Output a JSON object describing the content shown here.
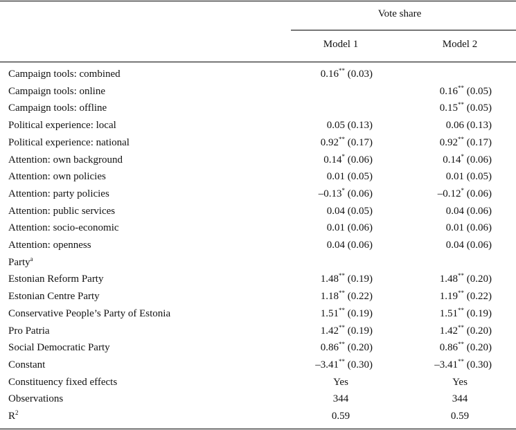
{
  "header": {
    "title": "Vote share",
    "columns": [
      "Model 1",
      "Model 2"
    ]
  },
  "table": {
    "rows": [
      {
        "label": "Campaign tools: combined",
        "cells": [
          {
            "value": "0.16",
            "stars": "**",
            "se": "(0.03)"
          },
          null
        ]
      },
      {
        "label": "Campaign tools: online",
        "cells": [
          null,
          {
            "value": "0.16",
            "stars": "**",
            "se": "(0.05)"
          }
        ]
      },
      {
        "label": "Campaign tools: offline",
        "cells": [
          null,
          {
            "value": "0.15",
            "stars": "**",
            "se": "(0.05)"
          }
        ]
      },
      {
        "label": "Political experience: local",
        "cells": [
          {
            "value": "0.05",
            "se": "(0.13)"
          },
          {
            "value": "0.06",
            "se": "(0.13)"
          }
        ]
      },
      {
        "label": "Political experience: national",
        "cells": [
          {
            "value": "0.92",
            "stars": "**",
            "se": "(0.17)"
          },
          {
            "value": "0.92",
            "stars": "**",
            "se": "(0.17)"
          }
        ]
      },
      {
        "label": "Attention: own background",
        "cells": [
          {
            "value": "0.14",
            "stars": "*",
            "se": "(0.06)"
          },
          {
            "value": "0.14",
            "stars": "*",
            "se": "(0.06)"
          }
        ]
      },
      {
        "label": "Attention: own policies",
        "cells": [
          {
            "value": "0.01",
            "se": "(0.05)"
          },
          {
            "value": "0.01",
            "se": "(0.05)"
          }
        ]
      },
      {
        "label": "Attention: party policies",
        "cells": [
          {
            "value": "–0.13",
            "stars": "*",
            "se": "(0.06)"
          },
          {
            "value": "–0.12",
            "stars": "*",
            "se": "(0.06)"
          }
        ]
      },
      {
        "label": "Attention: public services",
        "cells": [
          {
            "value": "0.04",
            "se": "(0.05)"
          },
          {
            "value": "0.04",
            "se": "(0.06)"
          }
        ]
      },
      {
        "label": "Attention: socio-economic",
        "cells": [
          {
            "value": "0.01",
            "se": "(0.06)"
          },
          {
            "value": "0.01",
            "se": "(0.06)"
          }
        ]
      },
      {
        "label": "Attention: openness",
        "cells": [
          {
            "value": "0.04",
            "se": "(0.06)"
          },
          {
            "value": "0.04",
            "se": "(0.06)"
          }
        ]
      },
      {
        "label": "Party",
        "label_sup": "a",
        "cells": [
          null,
          null
        ]
      },
      {
        "label": "Estonian Reform Party",
        "cells": [
          {
            "value": "1.48",
            "stars": "**",
            "se": "(0.19)"
          },
          {
            "value": "1.48",
            "stars": "**",
            "se": "(0.20)"
          }
        ]
      },
      {
        "label": "Estonian Centre Party",
        "cells": [
          {
            "value": "1.18",
            "stars": "**",
            "se": "(0.22)"
          },
          {
            "value": "1.19",
            "stars": "**",
            "se": "(0.22)"
          }
        ]
      },
      {
        "label": "Conservative People’s Party of Estonia",
        "cells": [
          {
            "value": "1.51",
            "stars": "**",
            "se": "(0.19)"
          },
          {
            "value": "1.51",
            "stars": "**",
            "se": "(0.19)"
          }
        ]
      },
      {
        "label": "Pro Patria",
        "cells": [
          {
            "value": "1.42",
            "stars": "**",
            "se": "(0.19)"
          },
          {
            "value": "1.42",
            "stars": "**",
            "se": "(0.20)"
          }
        ]
      },
      {
        "label": "Social Democratic Party",
        "cells": [
          {
            "value": "0.86",
            "stars": "**",
            "se": "(0.20)"
          },
          {
            "value": "0.86",
            "stars": "**",
            "se": "(0.20)"
          }
        ]
      },
      {
        "label": "Constant",
        "cells": [
          {
            "value": "–3.41",
            "stars": "**",
            "se": "(0.30)"
          },
          {
            "value": "–3.41",
            "stars": "**",
            "se": "(0.30)"
          }
        ]
      },
      {
        "label": "Constituency fixed effects",
        "cells": [
          {
            "value": "Yes"
          },
          {
            "value": "Yes"
          }
        ]
      },
      {
        "label": "Observations",
        "cells": [
          {
            "value": "344"
          },
          {
            "value": "344"
          }
        ]
      },
      {
        "label": "R",
        "label_sup": "2",
        "cells": [
          {
            "value": "0.59"
          },
          {
            "value": "0.59"
          }
        ]
      }
    ]
  }
}
